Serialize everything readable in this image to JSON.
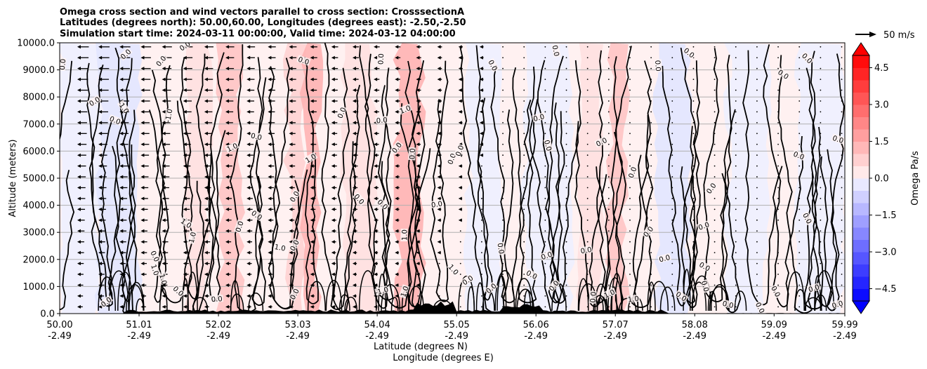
{
  "chart_data": {
    "type": "heatmap",
    "title_lines": [
      "Omega cross section and wind vectors parallel to cross section: CrosssectionA",
      "Latitudes (degrees north): 50.00,60.00, Longitudes (degrees east): -2.50,-2.50",
      "Simulation start time: 2024-03-11 00:00:00, Valid time: 2024-03-12 04:00:00"
    ],
    "xlabel_lines": [
      "Latitude (degrees N)",
      "Longitude (degrees E)"
    ],
    "ylabel": "Altitude (meters)",
    "x_range": [
      50.0,
      59.99
    ],
    "ylim": [
      0,
      10000
    ],
    "x_ticks": [
      {
        "lat": "50.00",
        "lon": "-2.49",
        "value": 50.0
      },
      {
        "lat": "51.01",
        "lon": "-2.49",
        "value": 51.01
      },
      {
        "lat": "52.02",
        "lon": "-2.49",
        "value": 52.02
      },
      {
        "lat": "53.03",
        "lon": "-2.49",
        "value": 53.03
      },
      {
        "lat": "54.04",
        "lon": "-2.49",
        "value": 54.04
      },
      {
        "lat": "55.05",
        "lon": "-2.49",
        "value": 55.05
      },
      {
        "lat": "56.06",
        "lon": "-2.49",
        "value": 56.06
      },
      {
        "lat": "57.07",
        "lon": "-2.49",
        "value": 57.07
      },
      {
        "lat": "58.08",
        "lon": "-2.49",
        "value": 58.08
      },
      {
        "lat": "59.09",
        "lon": "-2.49",
        "value": 59.09
      },
      {
        "lat": "59.99",
        "lon": "-2.49",
        "value": 59.99
      }
    ],
    "y_ticks": [
      {
        "label": "0.0",
        "value": 0
      },
      {
        "label": "1000.0",
        "value": 1000
      },
      {
        "label": "2000.0",
        "value": 2000
      },
      {
        "label": "3000.0",
        "value": 3000
      },
      {
        "label": "4000.0",
        "value": 4000
      },
      {
        "label": "5000.0",
        "value": 5000
      },
      {
        "label": "6000.0",
        "value": 6000
      },
      {
        "label": "7000.0",
        "value": 7000
      },
      {
        "label": "8000.0",
        "value": 8000
      },
      {
        "label": "9000.0",
        "value": 9000
      },
      {
        "label": "10000.0",
        "value": 10000
      }
    ],
    "grid": "horizontal",
    "colorbar": {
      "label": "Omega Pa/s",
      "range": [
        -5.0,
        5.0
      ],
      "levels": 20,
      "extend": "both",
      "ticks": [
        {
          "label": "4.5",
          "value": 4.5
        },
        {
          "label": "3.0",
          "value": 3.0
        },
        {
          "label": "1.5",
          "value": 1.5
        },
        {
          "label": "0.0",
          "value": 0.0
        },
        {
          "label": "−1.5",
          "value": -1.5
        },
        {
          "label": "−3.0",
          "value": -3.0
        },
        {
          "label": "−4.5",
          "value": -4.5
        }
      ],
      "positive_color": "#ff0000",
      "negative_color": "#0000ff"
    },
    "wind_key": {
      "label": "50 m/s"
    },
    "contour_levels": [
      -1.0,
      0.0,
      1.0
    ],
    "contour_labels": [
      {
        "text": "0.0",
        "lat": 50.05,
        "alt": 9200
      },
      {
        "text": "0.0",
        "lat": 50.85,
        "alt": 9550
      },
      {
        "text": "0.0",
        "lat": 51.3,
        "alt": 9300
      },
      {
        "text": "0.0",
        "lat": 51.6,
        "alt": 9850
      },
      {
        "text": "0.0",
        "lat": 50.45,
        "alt": 7800
      },
      {
        "text": "-1.0",
        "lat": 50.8,
        "alt": 7600
      },
      {
        "text": "0.0",
        "lat": 50.7,
        "alt": 7100
      },
      {
        "text": "-1.0",
        "lat": 51.4,
        "alt": 7300
      },
      {
        "text": "0.0",
        "lat": 53.1,
        "alt": 9300
      },
      {
        "text": "0.0",
        "lat": 54.1,
        "alt": 9400
      },
      {
        "text": "0.0",
        "lat": 55.5,
        "alt": 9150
      },
      {
        "text": "0.0",
        "lat": 56.3,
        "alt": 9700
      },
      {
        "text": "0.0",
        "lat": 57.6,
        "alt": 9150
      },
      {
        "text": "0.0",
        "lat": 58.0,
        "alt": 9600
      },
      {
        "text": "0.0",
        "lat": 59.2,
        "alt": 8800
      },
      {
        "text": "0.0",
        "lat": 59.5,
        "alt": 9400
      },
      {
        "text": "1.0",
        "lat": 54.4,
        "alt": 7500
      },
      {
        "text": "0.0",
        "lat": 53.6,
        "alt": 7400
      },
      {
        "text": "0.0",
        "lat": 54.1,
        "alt": 7100
      },
      {
        "text": "0.0",
        "lat": 52.5,
        "alt": 6500
      },
      {
        "text": "1.0",
        "lat": 52.2,
        "alt": 6100
      },
      {
        "text": "0.0",
        "lat": 54.3,
        "alt": 6100
      },
      {
        "text": "0.0",
        "lat": 54.5,
        "alt": 5900
      },
      {
        "text": "0.0",
        "lat": 55.0,
        "alt": 5700
      },
      {
        "text": "0.0",
        "lat": 55.1,
        "alt": 6000
      },
      {
        "text": "1.0",
        "lat": 53.2,
        "alt": 5700
      },
      {
        "text": "0.0",
        "lat": 56.1,
        "alt": 7200
      },
      {
        "text": "0.0",
        "lat": 56.2,
        "alt": 6200
      },
      {
        "text": "0.0",
        "lat": 56.9,
        "alt": 6300
      },
      {
        "text": "0.0",
        "lat": 57.3,
        "alt": 5200
      },
      {
        "text": "0.0",
        "lat": 58.3,
        "alt": 4600
      },
      {
        "text": "0.0",
        "lat": 59.4,
        "alt": 5800
      },
      {
        "text": "0.0",
        "lat": 59.9,
        "alt": 6400
      },
      {
        "text": "0.0",
        "lat": 53.0,
        "alt": 4300
      },
      {
        "text": "0.0",
        "lat": 53.8,
        "alt": 4200
      },
      {
        "text": "0.0",
        "lat": 54.1,
        "alt": 4000
      },
      {
        "text": "0.0",
        "lat": 54.8,
        "alt": 4000
      },
      {
        "text": "0.0",
        "lat": 52.5,
        "alt": 3600
      },
      {
        "text": "0.0",
        "lat": 52.3,
        "alt": 3200
      },
      {
        "text": "1.0",
        "lat": 51.6,
        "alt": 3300
      },
      {
        "text": "1.0",
        "lat": 51.7,
        "alt": 2800
      },
      {
        "text": "1.0",
        "lat": 52.8,
        "alt": 2400
      },
      {
        "text": "0.0",
        "lat": 53.0,
        "alt": 2500
      },
      {
        "text": "1.0",
        "lat": 54.4,
        "alt": 2900
      },
      {
        "text": "0.0",
        "lat": 59.5,
        "alt": 3500
      },
      {
        "text": "0.0",
        "lat": 58.2,
        "alt": 3200
      },
      {
        "text": "0.0",
        "lat": 57.5,
        "alt": 3000
      },
      {
        "text": "0.0",
        "lat": 55.6,
        "alt": 2400
      },
      {
        "text": "0.0",
        "lat": 56.2,
        "alt": 2100
      },
      {
        "text": "0.0",
        "lat": 56.7,
        "alt": 2300
      },
      {
        "text": "0.0",
        "lat": 57.7,
        "alt": 2000
      },
      {
        "text": "0.0",
        "lat": 58.2,
        "alt": 1700
      },
      {
        "text": "1.0",
        "lat": 51.2,
        "alt": 1600
      },
      {
        "text": "-1.0",
        "lat": 51.3,
        "alt": 1300
      },
      {
        "text": "0.0",
        "lat": 51.2,
        "alt": 2100
      },
      {
        "text": "1.0",
        "lat": 55.0,
        "alt": 1600
      },
      {
        "text": "0.0",
        "lat": 55.2,
        "alt": 1200
      },
      {
        "text": "0.0",
        "lat": 56.0,
        "alt": 1400
      },
      {
        "text": "0.0",
        "lat": 56.3,
        "alt": 1000
      },
      {
        "text": "1.0",
        "lat": 57.0,
        "alt": 700
      },
      {
        "text": "1.0",
        "lat": 57.3,
        "alt": 500
      },
      {
        "text": "0.0",
        "lat": 57.9,
        "alt": 600
      },
      {
        "text": "0.0",
        "lat": 58.2,
        "alt": 1000
      },
      {
        "text": "0.0",
        "lat": 59.1,
        "alt": 800
      },
      {
        "text": "0.0",
        "lat": 59.6,
        "alt": 900
      },
      {
        "text": "0.0",
        "lat": 50.6,
        "alt": 400
      },
      {
        "text": "0.0",
        "lat": 51.5,
        "alt": 800
      },
      {
        "text": "0.0",
        "lat": 52.0,
        "alt": 500
      },
      {
        "text": "0.0",
        "lat": 53.0,
        "alt": 700
      },
      {
        "text": "-1.0",
        "lat": 54.1,
        "alt": 800
      },
      {
        "text": "1.0",
        "lat": 54.4,
        "alt": 800
      },
      {
        "text": "0.0",
        "lat": 55.5,
        "alt": 900
      },
      {
        "text": "0.0",
        "lat": 56.8,
        "alt": 600
      },
      {
        "text": "0.0",
        "lat": 58.5,
        "alt": 300
      },
      {
        "text": "0.0",
        "lat": 58.9,
        "alt": 200
      },
      {
        "text": "0.0",
        "lat": 59.9,
        "alt": 300
      }
    ]
  }
}
